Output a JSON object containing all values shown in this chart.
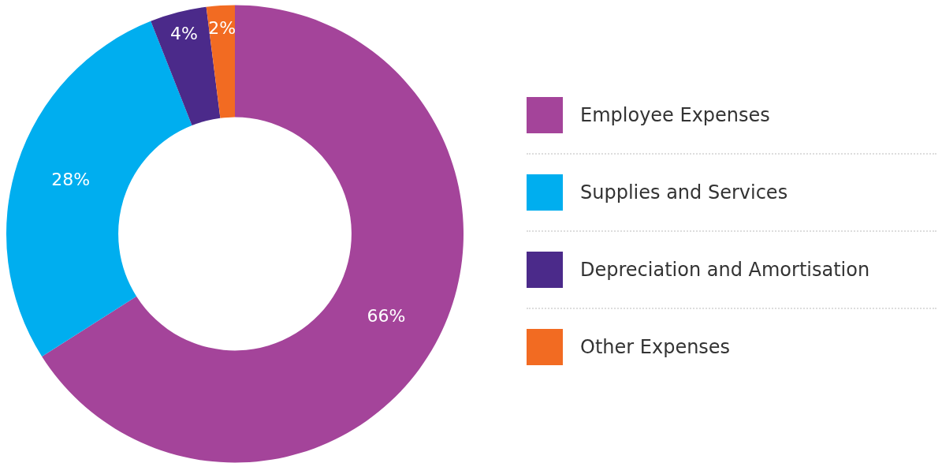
{
  "chart_data": {
    "type": "donut",
    "categories": [
      "Employee Expenses",
      "Supplies and Services",
      "Depreciation and Amortisation",
      "Other Expenses"
    ],
    "values": [
      66,
      28,
      4,
      2
    ],
    "colors": [
      "#a4449a",
      "#00aeef",
      "#4b2a8a",
      "#f26b22"
    ],
    "value_labels": [
      "66%",
      "28%",
      "4%",
      "2%"
    ],
    "legend": "right"
  }
}
